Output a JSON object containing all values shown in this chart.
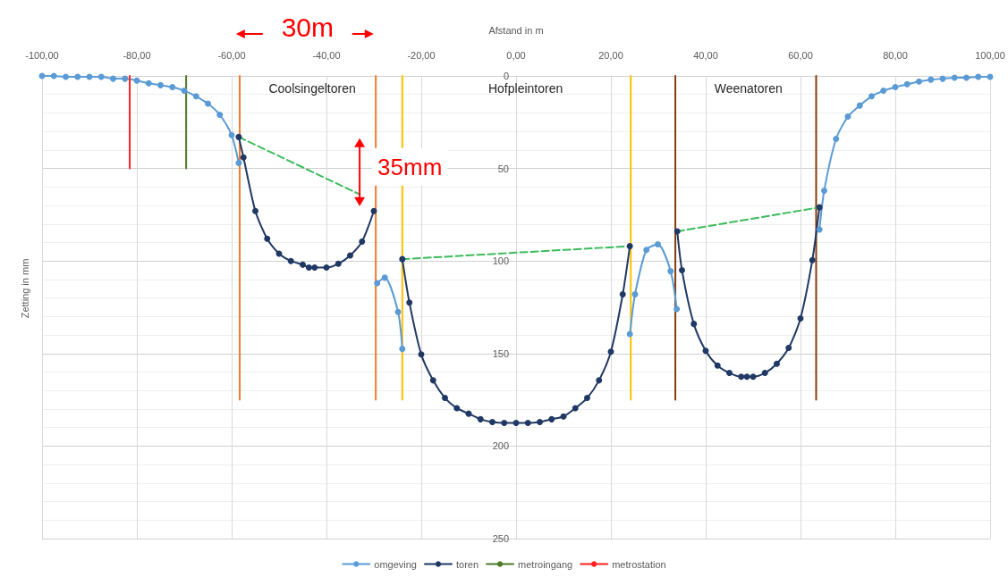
{
  "chart_data": {
    "type": "line",
    "xlabel": "Afstand in m",
    "ylabel": "Zetting in mm",
    "xlim": [
      -100,
      100
    ],
    "xticks": [
      {
        "value": -100,
        "label": "-100,00"
      },
      {
        "value": -80,
        "label": "-80,00"
      },
      {
        "value": -60,
        "label": "-60,00"
      },
      {
        "value": -40,
        "label": "-40,00"
      },
      {
        "value": -20,
        "label": "-20,00"
      },
      {
        "value": 0,
        "label": "0,00"
      },
      {
        "value": 20,
        "label": "20,00"
      },
      {
        "value": 40,
        "label": "40,00"
      },
      {
        "value": 60,
        "label": "60,00"
      },
      {
        "value": 80,
        "label": "80,00"
      },
      {
        "value": 100,
        "label": "100,00"
      }
    ],
    "ylim": [
      250,
      0
    ],
    "yticks": [
      0,
      50,
      100,
      150,
      200,
      250
    ],
    "grid": true,
    "legend": "bottom",
    "marker": "circle",
    "series": [
      {
        "name": "omgeving",
        "color": "#5b9bd5",
        "x": [
          -100,
          -97.5,
          -95,
          -92.5,
          -90,
          -87.5,
          -85,
          -82.5,
          -80,
          -77.5,
          -75,
          -72.5,
          -70,
          -67.5,
          -65,
          -62.5,
          -60,
          -58.5,
          -44,
          -29.3,
          -27.7,
          -24.9,
          -24,
          0,
          24,
          25.1,
          27.5,
          29.9,
          32.6,
          33.9,
          50,
          64,
          65,
          67.5,
          70,
          72.5,
          75,
          77.5,
          80,
          82.5,
          85,
          87.5,
          90,
          92.5,
          95,
          97.5,
          100
        ],
        "values": [
          0,
          0,
          0.5,
          0.5,
          0.5,
          0.5,
          1.5,
          1.5,
          2.5,
          4,
          5,
          6,
          8,
          11,
          15,
          21,
          32,
          47,
          null,
          112,
          109,
          127.5,
          147.5,
          null,
          139.5,
          118,
          94,
          91,
          105.5,
          126,
          null,
          83,
          62,
          34,
          22,
          16,
          11,
          8,
          6,
          4.5,
          3,
          2,
          1.5,
          1,
          1,
          0.5,
          0.5
        ]
      },
      {
        "name": "toren",
        "color": "#203864",
        "x": [
          -58.5,
          -57.5,
          -55,
          -52.5,
          -50,
          -47.5,
          -45,
          -43.7,
          -42.5,
          -40,
          -37.5,
          -35,
          -32.5,
          -30,
          -27,
          -24,
          -22.5,
          -20,
          -17.5,
          -15,
          -12.5,
          -10,
          -7.5,
          -5,
          -2.5,
          0,
          2.5,
          5,
          7.5,
          10,
          12.5,
          15,
          17.5,
          20,
          22.5,
          24,
          29,
          34,
          35,
          37.5,
          40,
          42.5,
          45,
          47.5,
          48.7,
          50,
          52.5,
          55,
          57.5,
          60,
          62.5,
          64
        ],
        "values": [
          33,
          44,
          73,
          88,
          96,
          100,
          102,
          103.5,
          103.5,
          103.5,
          101.5,
          97,
          89.5,
          73,
          null,
          99,
          122.5,
          150.5,
          164.5,
          174,
          179.5,
          182.5,
          185.5,
          187,
          187.5,
          187.5,
          187.5,
          187,
          185.5,
          184,
          179.5,
          174,
          164.5,
          149,
          118,
          92,
          null,
          84,
          105,
          134,
          148.5,
          156.5,
          160.5,
          162.5,
          162.5,
          162.5,
          160.5,
          155.5,
          147,
          131,
          99.5,
          71
        ]
      },
      {
        "name": "metroingang",
        "color": "#4e7a2a",
        "marker": "none",
        "x": [
          -69.6,
          -69.6
        ],
        "values": [
          0,
          50
        ]
      },
      {
        "name": "metrostation",
        "color": "#ff2020",
        "marker": "none",
        "x": [
          -81.5,
          -81.5
        ],
        "values": [
          0,
          50
        ]
      },
      {
        "color": "#ed7d31",
        "marker": "none",
        "x": [
          -58.3,
          -58.3
        ],
        "values": [
          0,
          175
        ]
      },
      {
        "color": "#ed7d31",
        "marker": "none",
        "x": [
          -29.6,
          -29.6
        ],
        "values": [
          0,
          175
        ]
      },
      {
        "color": "#ffc000",
        "marker": "none",
        "x": [
          -24,
          -24
        ],
        "values": [
          0,
          175
        ]
      },
      {
        "color": "#ffc000",
        "marker": "none",
        "x": [
          24.2,
          24.2
        ],
        "values": [
          0,
          175
        ]
      },
      {
        "color": "#843c0c",
        "marker": "none",
        "x": [
          33.6,
          33.6
        ],
        "values": [
          0,
          175
        ]
      },
      {
        "color": "#843c0c",
        "marker": "none",
        "x": [
          63.3,
          63.3
        ],
        "values": [
          0,
          175
        ]
      },
      {
        "color": "#3dbb5c",
        "marker": "none",
        "line_style": "dashed",
        "x": [
          -58.5,
          -33
        ],
        "values": [
          33,
          64
        ]
      },
      {
        "color": "#3dbb5c",
        "marker": "none",
        "line_style": "dashed",
        "x": [
          -24,
          24
        ],
        "values": [
          99,
          92
        ]
      },
      {
        "color": "#3dbb5c",
        "marker": "none",
        "line_style": "dashed",
        "x": [
          34,
          64
        ],
        "values": [
          84,
          71
        ]
      }
    ],
    "annotations": [
      "Coolsingeltoren",
      "Hofpleintoren",
      "Weenatoren",
      "30m",
      "35mm"
    ]
  }
}
